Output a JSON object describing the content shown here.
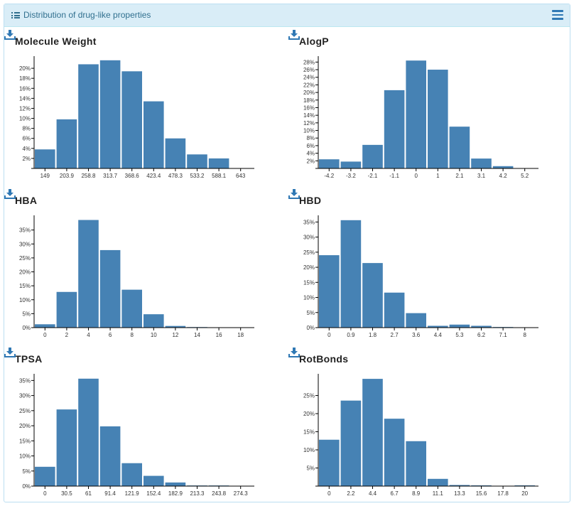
{
  "panel": {
    "title": "Distribution of drug-like properties"
  },
  "icons": {
    "header": "list-icon",
    "menu": "hamburger-menu-icon",
    "download": "download-icon"
  },
  "colors": {
    "bar": "#4682b4",
    "header_bg": "#d9edf7",
    "header_text": "#31708f",
    "icon": "#2f78b4"
  },
  "charts": [
    {
      "id": "molecule-weight",
      "title": "Molecule Weight",
      "chart_data": {
        "type": "bar",
        "title": "Molecule Weight",
        "xlabel": "",
        "ylabel": "",
        "x_ticks": [
          "149",
          "203.9",
          "258.8",
          "313.7",
          "368.6",
          "423.4",
          "478.3",
          "533.2",
          "588.1",
          "643"
        ],
        "bins": 10,
        "values": [
          3.8,
          9.8,
          20.8,
          21.6,
          19.4,
          13.4,
          6.0,
          2.8,
          2.0,
          0
        ],
        "y_ticks": [
          "2%",
          "4%",
          "6%",
          "8%",
          "10%",
          "12%",
          "14%",
          "16%",
          "18%",
          "20%"
        ],
        "y_tick_values": [
          2,
          4,
          6,
          8,
          10,
          12,
          14,
          16,
          18,
          20
        ],
        "ylim": [
          0,
          22
        ]
      }
    },
    {
      "id": "alogp",
      "title": "AlogP",
      "chart_data": {
        "type": "bar",
        "title": "AlogP",
        "xlabel": "",
        "ylabel": "",
        "x_ticks": [
          "-4.2",
          "-3.2",
          "-2.1",
          "-1.1",
          "0",
          "1",
          "2.1",
          "3.1",
          "4.2",
          "5.2"
        ],
        "bins": 10,
        "values": [
          2.4,
          1.8,
          6.2,
          20.6,
          28.4,
          26.0,
          11.0,
          2.6,
          0.6,
          0
        ],
        "y_ticks": [
          "2%",
          "4%",
          "6%",
          "8%",
          "10%",
          "12%",
          "14%",
          "16%",
          "18%",
          "20%",
          "22%",
          "24%",
          "26%",
          "28%"
        ],
        "y_tick_values": [
          2,
          4,
          6,
          8,
          10,
          12,
          14,
          16,
          18,
          20,
          22,
          24,
          26,
          28
        ],
        "ylim": [
          0,
          29
        ]
      }
    },
    {
      "id": "hba",
      "title": "HBA",
      "chart_data": {
        "type": "bar",
        "title": "HBA",
        "xlabel": "",
        "ylabel": "",
        "x_ticks": [
          "0",
          "2",
          "4",
          "6",
          "8",
          "10",
          "12",
          "14",
          "16",
          "18"
        ],
        "bins": 10,
        "values": [
          1.2,
          12.8,
          38.6,
          27.8,
          13.6,
          4.8,
          0.6,
          0.2,
          0.1,
          0.1
        ],
        "y_ticks": [
          "0%",
          "5%",
          "10%",
          "15%",
          "20%",
          "25%",
          "30%",
          "35%"
        ],
        "y_tick_values": [
          0,
          5,
          10,
          15,
          20,
          25,
          30,
          35
        ],
        "ylim": [
          0,
          39.5
        ]
      }
    },
    {
      "id": "hbd",
      "title": "HBD",
      "chart_data": {
        "type": "bar",
        "title": "HBD",
        "xlabel": "",
        "ylabel": "",
        "x_ticks": [
          "0",
          "0.9",
          "1.8",
          "2.7",
          "3.6",
          "4.4",
          "5.3",
          "6.2",
          "7.1",
          "8"
        ],
        "bins": 10,
        "values": [
          24.0,
          35.6,
          21.4,
          11.6,
          4.8,
          0.6,
          1.0,
          0.6,
          0.2,
          0.1
        ],
        "y_ticks": [
          "0%",
          "5%",
          "10%",
          "15%",
          "20%",
          "25%",
          "30%",
          "35%"
        ],
        "y_tick_values": [
          0,
          5,
          10,
          15,
          20,
          25,
          30,
          35
        ],
        "ylim": [
          0,
          36.5
        ]
      }
    },
    {
      "id": "tpsa",
      "title": "TPSA",
      "chart_data": {
        "type": "bar",
        "title": "TPSA",
        "xlabel": "",
        "ylabel": "",
        "x_ticks": [
          "0",
          "30.5",
          "61",
          "91.4",
          "121.9",
          "152.4",
          "182.9",
          "213.3",
          "243.8",
          "274.3"
        ],
        "bins": 10,
        "values": [
          6.4,
          25.4,
          35.6,
          19.8,
          7.6,
          3.4,
          1.2,
          0.2,
          0.2,
          0.1
        ],
        "y_ticks": [
          "0%",
          "5%",
          "10%",
          "15%",
          "20%",
          "25%",
          "30%",
          "35%"
        ],
        "y_tick_values": [
          0,
          5,
          10,
          15,
          20,
          25,
          30,
          35
        ],
        "ylim": [
          0,
          36.5
        ]
      }
    },
    {
      "id": "rotbonds",
      "title": "RotBonds",
      "chart_data": {
        "type": "bar",
        "title": "RotBonds",
        "xlabel": "",
        "ylabel": "",
        "x_ticks": [
          "0",
          "2.2",
          "4.4",
          "6.7",
          "8.9",
          "11.1",
          "13.3",
          "15.6",
          "17.8",
          "20"
        ],
        "bins": 10,
        "values": [
          12.8,
          23.6,
          29.6,
          18.6,
          12.4,
          2.0,
          0.3,
          0.2,
          0.1,
          0.2
        ],
        "y_ticks": [
          "5%",
          "10%",
          "15%",
          "20%",
          "25%"
        ],
        "y_tick_values": [
          5,
          10,
          15,
          20,
          25
        ],
        "ylim": [
          0,
          30.4
        ]
      }
    }
  ]
}
